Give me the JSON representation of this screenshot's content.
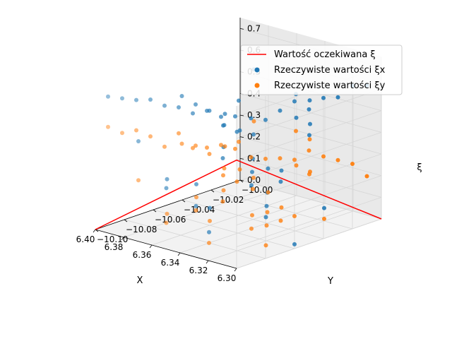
{
  "chart_data": {
    "type": "scatter",
    "projection": "3d",
    "title": "",
    "xlabel": "X",
    "ylabel": "Y",
    "zlabel": "ξ",
    "xlim": [
      6.3,
      6.4
    ],
    "ylim": [
      -10.1,
      -10.0
    ],
    "zlim": [
      0.0,
      0.75
    ],
    "x_ticks": [
      "6.30",
      "6.32",
      "6.34",
      "6.36",
      "6.38",
      "6.40"
    ],
    "y_ticks": [
      "−10.10",
      "−10.08",
      "−10.06",
      "−10.04",
      "−10.02",
      "−10.00"
    ],
    "z_ticks": [
      "0.0",
      "0.1",
      "0.2",
      "0.3",
      "0.4",
      "0.5",
      "0.6",
      "0.7"
    ],
    "grid": true,
    "legend_position": "top-right",
    "colors": {
      "expected": "#ff0000",
      "xi_x": "#1f77b4",
      "xi_y": "#ff7f0e"
    },
    "series": [
      {
        "name": "Wartość oczekiwana ξ",
        "kind": "line",
        "x": [
          6.4,
          6.3,
          6.3
        ],
        "y": [
          -10.1,
          -10.1,
          -10.0
        ],
        "z": [
          0.0,
          0.5,
          0.0
        ]
      },
      {
        "name": "Rzeczywiste wartości ξx",
        "kind": "scatter",
        "points": [
          [
            6.301,
            -10.1,
            0.7
          ],
          [
            6.311,
            -10.1,
            0.68
          ],
          [
            6.321,
            -10.1,
            0.69
          ],
          [
            6.331,
            -10.1,
            0.66
          ],
          [
            6.341,
            -10.1,
            0.67
          ],
          [
            6.351,
            -10.1,
            0.66
          ],
          [
            6.361,
            -10.1,
            0.67
          ],
          [
            6.371,
            -10.1,
            0.65
          ],
          [
            6.381,
            -10.1,
            0.64
          ],
          [
            6.391,
            -10.1,
            0.63
          ],
          [
            6.3,
            -10.09,
            0.67
          ],
          [
            6.3,
            -10.08,
            0.64
          ],
          [
            6.3,
            -10.07,
            0.66
          ],
          [
            6.3,
            -10.06,
            0.68
          ],
          [
            6.3,
            -10.05,
            0.62
          ],
          [
            6.3,
            -10.04,
            0.65
          ],
          [
            6.3,
            -10.03,
            0.63
          ],
          [
            6.3,
            -10.02,
            0.66
          ],
          [
            6.3,
            -10.01,
            0.64
          ],
          [
            6.31,
            -10.09,
            0.59
          ],
          [
            6.33,
            -10.08,
            0.56
          ],
          [
            6.35,
            -10.07,
            0.57
          ],
          [
            6.37,
            -10.06,
            0.54
          ],
          [
            6.39,
            -10.05,
            0.52
          ],
          [
            6.32,
            -10.03,
            0.58
          ],
          [
            6.34,
            -10.02,
            0.55
          ],
          [
            6.36,
            -10.04,
            0.53
          ],
          [
            6.38,
            -10.01,
            0.57
          ],
          [
            6.32,
            -10.09,
            0.45
          ],
          [
            6.34,
            -10.07,
            0.42
          ],
          [
            6.36,
            -10.05,
            0.44
          ],
          [
            6.38,
            -10.03,
            0.41
          ],
          [
            6.31,
            -10.04,
            0.46
          ],
          [
            6.33,
            -10.02,
            0.43
          ],
          [
            6.35,
            -10.01,
            0.4
          ],
          [
            6.39,
            -10.08,
            0.38
          ],
          [
            6.31,
            -10.08,
            0.32
          ],
          [
            6.33,
            -10.06,
            0.3
          ],
          [
            6.35,
            -10.04,
            0.28
          ],
          [
            6.37,
            -10.02,
            0.31
          ],
          [
            6.39,
            -10.01,
            0.27
          ],
          [
            6.32,
            -10.05,
            0.25
          ],
          [
            6.34,
            -10.03,
            0.22
          ],
          [
            6.36,
            -10.09,
            0.24
          ],
          [
            6.38,
            -10.07,
            0.2
          ],
          [
            6.31,
            -10.07,
            0.15
          ],
          [
            6.33,
            -10.05,
            0.12
          ],
          [
            6.35,
            -10.03,
            0.1
          ],
          [
            6.37,
            -10.01,
            0.13
          ],
          [
            6.39,
            -10.04,
            0.09
          ],
          [
            6.32,
            -10.02,
            0.06
          ],
          [
            6.34,
            -10.08,
            0.05
          ],
          [
            6.36,
            -10.06,
            0.08
          ],
          [
            6.38,
            -10.05,
            0.03
          ],
          [
            6.3,
            -10.06,
            0.02
          ]
        ]
      },
      {
        "name": "Rzeczywiste wartości ξy",
        "kind": "scatter",
        "points": [
          [
            6.301,
            -10.1,
            0.55
          ],
          [
            6.311,
            -10.1,
            0.55
          ],
          [
            6.321,
            -10.1,
            0.52
          ],
          [
            6.331,
            -10.1,
            0.5
          ],
          [
            6.341,
            -10.1,
            0.55
          ],
          [
            6.351,
            -10.1,
            0.47
          ],
          [
            6.361,
            -10.1,
            0.5
          ],
          [
            6.371,
            -10.1,
            0.51
          ],
          [
            6.381,
            -10.1,
            0.48
          ],
          [
            6.391,
            -10.1,
            0.49
          ],
          [
            6.3,
            -10.09,
            0.49
          ],
          [
            6.3,
            -10.08,
            0.46
          ],
          [
            6.3,
            -10.07,
            0.44
          ],
          [
            6.3,
            -10.06,
            0.41
          ],
          [
            6.3,
            -10.05,
            0.43
          ],
          [
            6.3,
            -10.04,
            0.38
          ],
          [
            6.3,
            -10.03,
            0.34
          ],
          [
            6.3,
            -10.02,
            0.3
          ],
          [
            6.3,
            -10.01,
            0.22
          ],
          [
            6.31,
            -10.09,
            0.36
          ],
          [
            6.33,
            -10.08,
            0.33
          ],
          [
            6.35,
            -10.07,
            0.37
          ],
          [
            6.37,
            -10.06,
            0.35
          ],
          [
            6.39,
            -10.05,
            0.3
          ],
          [
            6.32,
            -10.03,
            0.4
          ],
          [
            6.34,
            -10.02,
            0.38
          ],
          [
            6.36,
            -10.04,
            0.34
          ],
          [
            6.38,
            -10.01,
            0.33
          ],
          [
            6.32,
            -10.09,
            0.25
          ],
          [
            6.34,
            -10.07,
            0.22
          ],
          [
            6.36,
            -10.05,
            0.24
          ],
          [
            6.38,
            -10.03,
            0.26
          ],
          [
            6.31,
            -10.04,
            0.28
          ],
          [
            6.33,
            -10.02,
            0.21
          ],
          [
            6.35,
            -10.01,
            0.18
          ],
          [
            6.39,
            -10.08,
            0.2
          ],
          [
            6.31,
            -10.08,
            0.12
          ],
          [
            6.33,
            -10.06,
            0.1
          ],
          [
            6.35,
            -10.04,
            0.14
          ],
          [
            6.37,
            -10.02,
            0.11
          ],
          [
            6.39,
            -10.01,
            0.09
          ],
          [
            6.32,
            -10.05,
            0.07
          ],
          [
            6.34,
            -10.03,
            0.05
          ],
          [
            6.36,
            -10.09,
            0.08
          ],
          [
            6.38,
            -10.07,
            0.04
          ],
          [
            6.31,
            -10.07,
            0.02
          ],
          [
            6.33,
            -10.05,
            0.03
          ],
          [
            6.35,
            -10.03,
            0.01
          ],
          [
            6.37,
            -10.01,
            0.02
          ],
          [
            6.39,
            -10.04,
            0.03
          ],
          [
            6.32,
            -10.02,
            0.01
          ],
          [
            6.34,
            -10.08,
            0.0
          ],
          [
            6.36,
            -10.06,
            0.02
          ],
          [
            6.38,
            -10.05,
            0.01
          ],
          [
            6.3,
            -10.06,
            0.15
          ]
        ]
      }
    ]
  }
}
